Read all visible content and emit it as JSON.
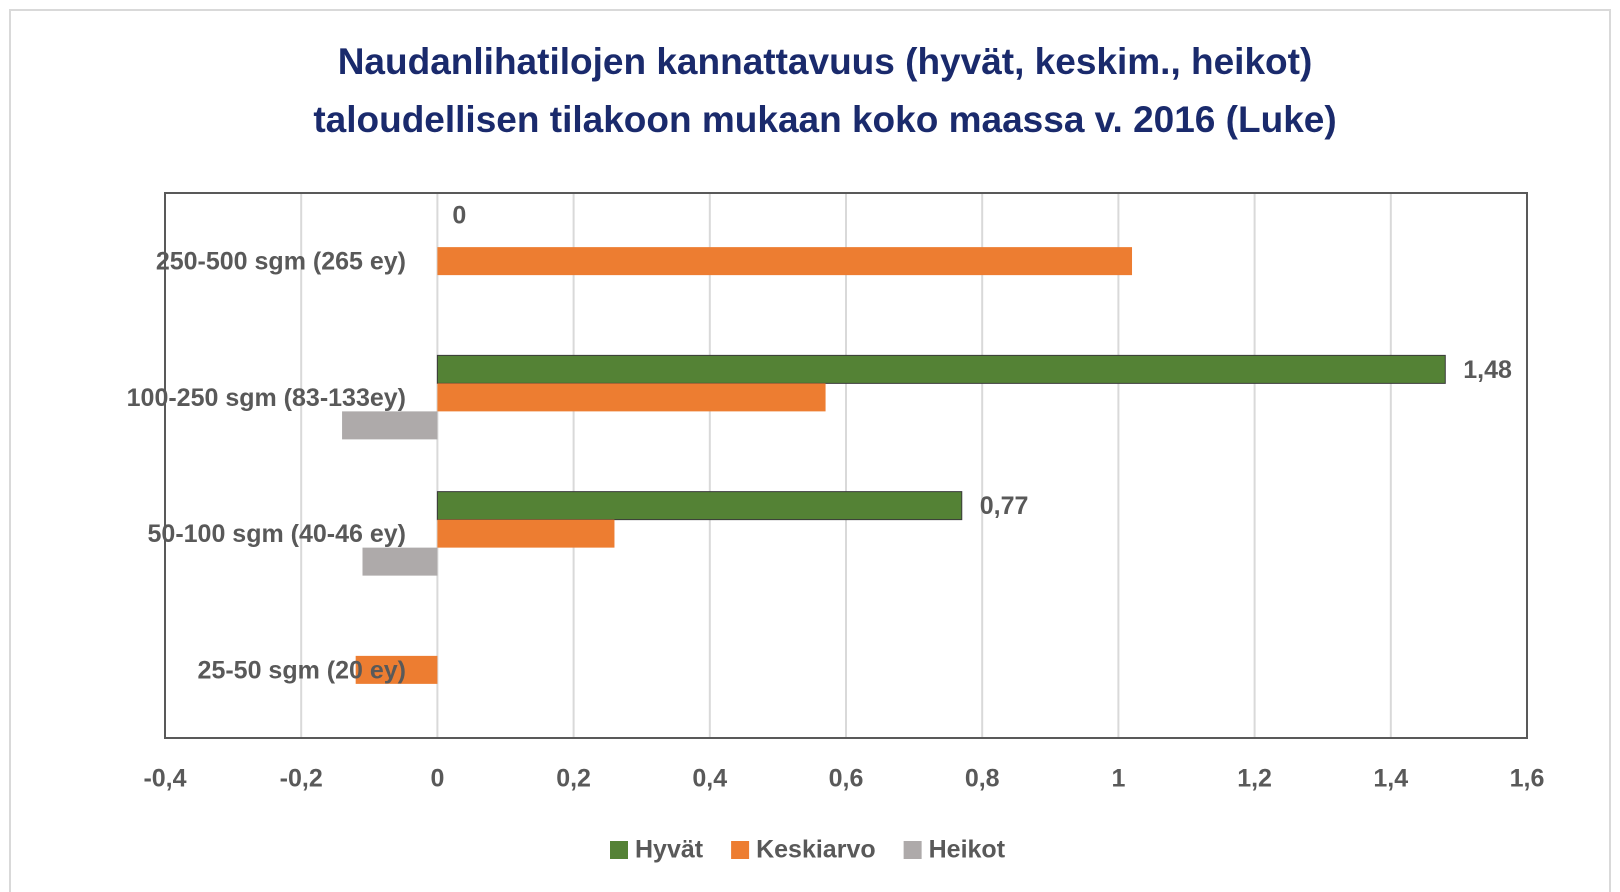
{
  "chart_data": {
    "type": "hbar",
    "title": [
      "Naudanlihatilojen kannattavuus (hyvät, keskim., heikot)",
      "taloudellisen tilakoon mukaan koko maassa v. 2016 (Luke)"
    ],
    "categories": [
      "250-500 sgm (265 ey)",
      "100-250 sgm (83-133ey)",
      "50-100 sgm (40-46 ey)",
      "25-50 sgm (20 ey)"
    ],
    "series": [
      {
        "name": "Hyvät",
        "color": "#548235",
        "values": [
          0,
          1.48,
          0.77,
          null
        ],
        "value_labels": [
          "0",
          "1,48",
          "0,77",
          null
        ]
      },
      {
        "name": "Keskiarvo",
        "color": "#ed7d31",
        "values": [
          1.02,
          0.57,
          0.26,
          -0.12
        ]
      },
      {
        "name": "Heikot",
        "color": "#aeaaaa",
        "values": [
          null,
          -0.14,
          -0.11,
          null
        ]
      }
    ],
    "xlim": [
      -0.4,
      1.6
    ],
    "xticks": [
      {
        "value": -0.4,
        "label": "-0,4"
      },
      {
        "value": -0.2,
        "label": "-0,2"
      },
      0,
      {
        "value": 0.2,
        "label": "0,2"
      },
      {
        "value": 0.4,
        "label": "0,4"
      },
      {
        "value": 0.6,
        "label": "0,6"
      },
      {
        "value": 0.8,
        "label": "0,8"
      },
      1,
      {
        "value": 1.2,
        "label": "1,2"
      },
      {
        "value": 1.4,
        "label": "1,4"
      },
      {
        "value": 1.6,
        "label": "1,6"
      }
    ],
    "grid": true,
    "legend": "bottom"
  }
}
